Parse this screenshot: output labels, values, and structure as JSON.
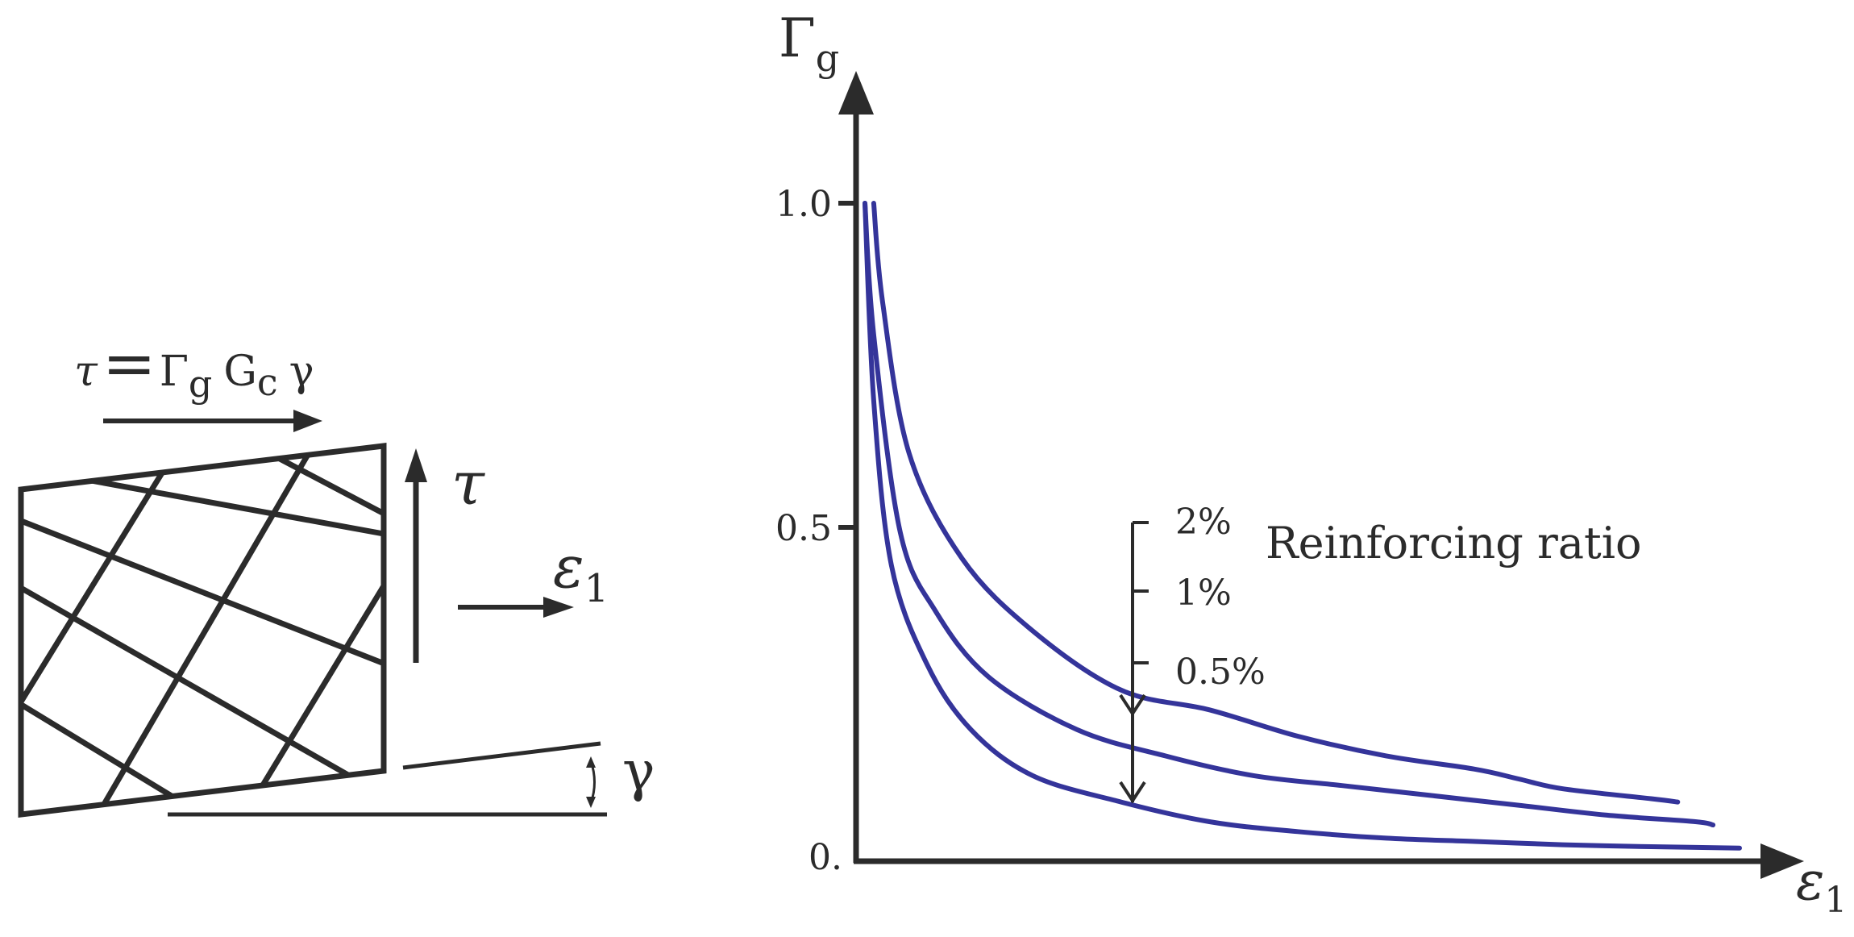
{
  "left_diagram": {
    "formula": {
      "tau": "τ",
      "equals": "=",
      "gamma_cap": "Γ",
      "gamma_cap_sub": "g",
      "g": "G",
      "g_sub": "c",
      "gamma": "γ"
    },
    "tau_label": "τ",
    "epsilon_label": "ε",
    "epsilon_sub": "1",
    "gamma_label": "γ"
  },
  "chart": {
    "y_axis_label": "Γ",
    "y_axis_label_sub": "g",
    "x_axis_label": "ε",
    "x_axis_label_sub": "1",
    "y_ticks": [
      "1.0",
      "0.5",
      "0."
    ],
    "ratio_ticks": [
      "2%",
      "1%",
      "0.5%"
    ],
    "annotation": "Reinforcing ratio"
  },
  "chart_data": {
    "type": "line",
    "title": "",
    "xlabel": "ε1",
    "ylabel": "Γg",
    "ylim": [
      0,
      1.0
    ],
    "y_ticks": [
      0,
      0.5,
      1.0
    ],
    "x_ticks": [],
    "legend": "Reinforcing ratio: 2%, 1%, 0.5%",
    "series": [
      {
        "name": "2%",
        "color": "#34349a",
        "x": [
          0.02,
          0.03,
          0.06,
          0.12,
          0.2,
          0.3,
          0.4,
          0.5,
          0.6,
          0.7,
          0.75,
          0.8,
          0.9,
          0.93
        ],
        "y": [
          1.0,
          0.85,
          0.62,
          0.46,
          0.35,
          0.26,
          0.23,
          0.19,
          0.16,
          0.14,
          0.125,
          0.11,
          0.095,
          0.09
        ]
      },
      {
        "name": "1%",
        "color": "#34349a",
        "x": [
          0.01,
          0.02,
          0.05,
          0.09,
          0.15,
          0.25,
          0.35,
          0.45,
          0.55,
          0.65,
          0.75,
          0.85,
          0.95,
          0.97
        ],
        "y": [
          1.0,
          0.8,
          0.5,
          0.38,
          0.28,
          0.2,
          0.16,
          0.13,
          0.115,
          0.1,
          0.085,
          0.07,
          0.06,
          0.055
        ]
      },
      {
        "name": "0.5%",
        "color": "#34349a",
        "x": [
          0.01,
          0.02,
          0.04,
          0.08,
          0.13,
          0.2,
          0.3,
          0.4,
          0.5,
          0.6,
          0.7,
          0.8,
          0.9,
          1.0
        ],
        "y": [
          1.0,
          0.7,
          0.45,
          0.3,
          0.2,
          0.13,
          0.09,
          0.06,
          0.045,
          0.035,
          0.03,
          0.025,
          0.022,
          0.02
        ]
      }
    ]
  }
}
